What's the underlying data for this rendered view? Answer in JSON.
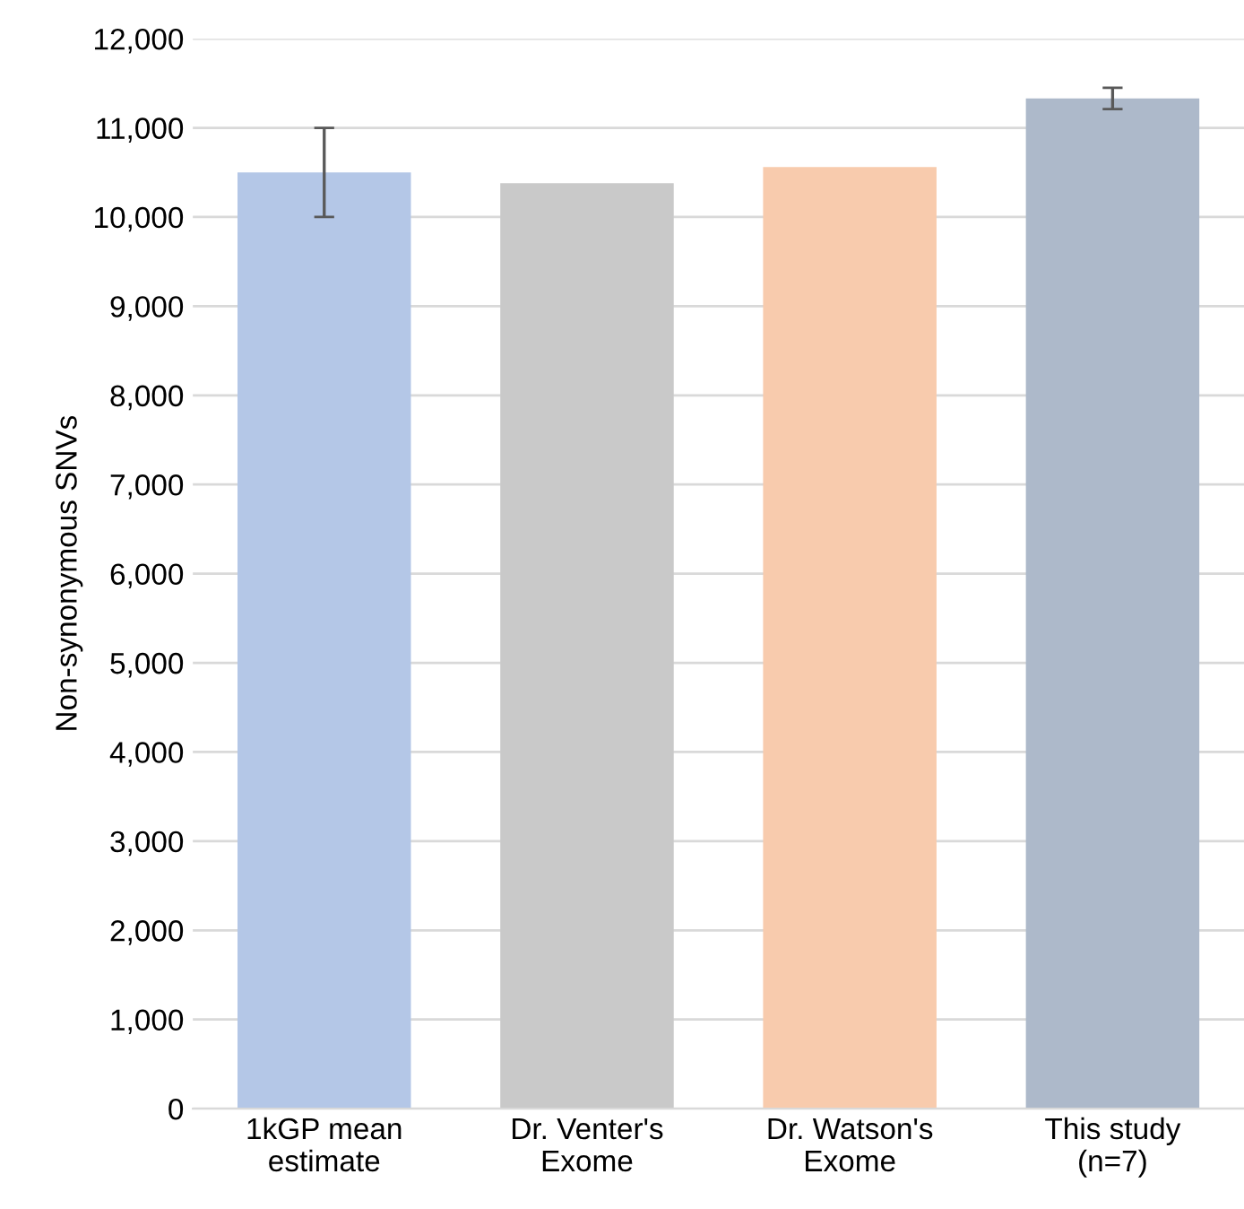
{
  "chart_data": {
    "type": "bar",
    "ylabel": "Non-synonymous SNVs",
    "categories": [
      "1kGP mean\nestimate",
      "Dr. Venter's\nExome",
      "Dr. Watson's\nExome",
      "This study\n(n=7)"
    ],
    "values": [
      10500,
      10380,
      10560,
      11330
    ],
    "errors": [
      500,
      null,
      null,
      120
    ],
    "colors": [
      "#b4c7e7",
      "#c9c9c9",
      "#f8cbad",
      "#adb9ca"
    ],
    "ylim": [
      0,
      12000
    ],
    "yticks": [
      {
        "value": 0,
        "label": "0"
      },
      {
        "value": 1000,
        "label": "1,000"
      },
      {
        "value": 2000,
        "label": "2,000"
      },
      {
        "value": 3000,
        "label": "3,000"
      },
      {
        "value": 4000,
        "label": "4,000"
      },
      {
        "value": 5000,
        "label": "5,000"
      },
      {
        "value": 6000,
        "label": "6,000"
      },
      {
        "value": 7000,
        "label": "7,000"
      },
      {
        "value": 8000,
        "label": "8,000"
      },
      {
        "value": 9000,
        "label": "9,000"
      },
      {
        "value": 10000,
        "label": "10,000"
      },
      {
        "value": 11000,
        "label": "11,000"
      },
      {
        "value": 12000,
        "label": "12,000"
      }
    ],
    "grid": "y"
  }
}
